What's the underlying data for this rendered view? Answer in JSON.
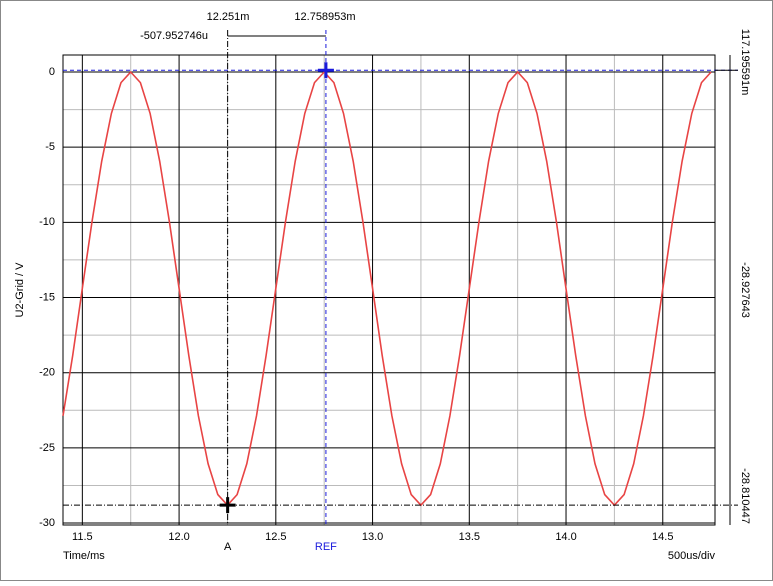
{
  "chart_data": {
    "type": "line",
    "y_label": "U2-Grid / V",
    "x_label": "Time/ms",
    "scale_label": "500us/div",
    "x": [
      11.4,
      11.45,
      11.5,
      11.55,
      11.6,
      11.65,
      11.7,
      11.75,
      11.8,
      11.85,
      11.9,
      11.95,
      12.0,
      12.05,
      12.1,
      12.15,
      12.2,
      12.25,
      12.3,
      12.35,
      12.4,
      12.45,
      12.5,
      12.55,
      12.6,
      12.65,
      12.7,
      12.75,
      12.8,
      12.85,
      12.9,
      12.95,
      13.0,
      13.05,
      13.1,
      13.15,
      13.2,
      13.25,
      13.3,
      13.35,
      13.4,
      13.45,
      13.5,
      13.55,
      13.6,
      13.65,
      13.7,
      13.75,
      13.8,
      13.85,
      13.9,
      13.95,
      14.0,
      14.05,
      14.1,
      14.15,
      14.2,
      14.25,
      14.3,
      14.35,
      14.4,
      14.45,
      14.5,
      14.55,
      14.6,
      14.65,
      14.7,
      14.75
    ],
    "series": [
      {
        "color": "#e84444",
        "values": [
          -22.872,
          -18.856,
          -14.405,
          -9.954,
          -5.938,
          -2.751,
          -0.704,
          0,
          -0.704,
          -2.751,
          -5.938,
          -9.954,
          -14.405,
          -18.856,
          -22.872,
          -26.059,
          -28.106,
          -28.81,
          -28.106,
          -26.059,
          -22.872,
          -18.856,
          -14.405,
          -9.954,
          -5.938,
          -2.751,
          -0.704,
          0,
          -0.704,
          -2.751,
          -5.938,
          -9.954,
          -14.405,
          -18.856,
          -22.872,
          -26.059,
          -28.106,
          -28.81,
          -28.106,
          -26.059,
          -22.872,
          -18.856,
          -14.405,
          -9.954,
          -5.938,
          -2.751,
          -0.704,
          0,
          -0.704,
          -2.751,
          -5.938,
          -9.954,
          -14.405,
          -18.856,
          -22.872,
          -26.059,
          -28.106,
          -28.81,
          -28.106,
          -26.059,
          -22.872,
          -18.856,
          -14.405,
          -9.954,
          -5.938,
          -2.751,
          -0.704,
          0
        ]
      }
    ],
    "xlim": [
      11.4,
      14.77
    ],
    "ylim": [
      -30.13,
      1.13
    ],
    "xticks": [
      {
        "value": 11.5,
        "label": "11.5"
      },
      {
        "value": 12,
        "label": "12.0"
      },
      {
        "value": 12.5,
        "label": "12.5"
      },
      {
        "value": 13,
        "label": "13.0"
      },
      {
        "value": 13.5,
        "label": "13.5"
      },
      {
        "value": 14,
        "label": "14.0"
      },
      {
        "value": 14.5,
        "label": "14.5"
      }
    ],
    "x_minor_ticks": [
      11.75,
      12.25,
      12.75,
      13.25,
      13.75,
      14.25
    ],
    "yticks": [
      0,
      -5,
      -10,
      -15,
      -20,
      -25,
      -30
    ],
    "y_minor_ticks": [
      -2.5,
      -7.5,
      -12.5,
      -17.5,
      -22.5,
      -27.5
    ],
    "grid": true,
    "cursors": [
      {
        "label": "A",
        "x": 12.251,
        "y": -28.810447,
        "color": "#000000"
      },
      {
        "label": "REF",
        "x": 12.758953,
        "y": 0.117195591,
        "color": "#1a1adc"
      }
    ],
    "readouts": {
      "cursor_a_x": "12.251m",
      "cursor_ref_x": "12.758953m",
      "delta_x": "-507.952746u",
      "ref_y": "117.195591m",
      "delta_y": "-28.927643",
      "cursor_a_y": "-28.810447"
    }
  }
}
